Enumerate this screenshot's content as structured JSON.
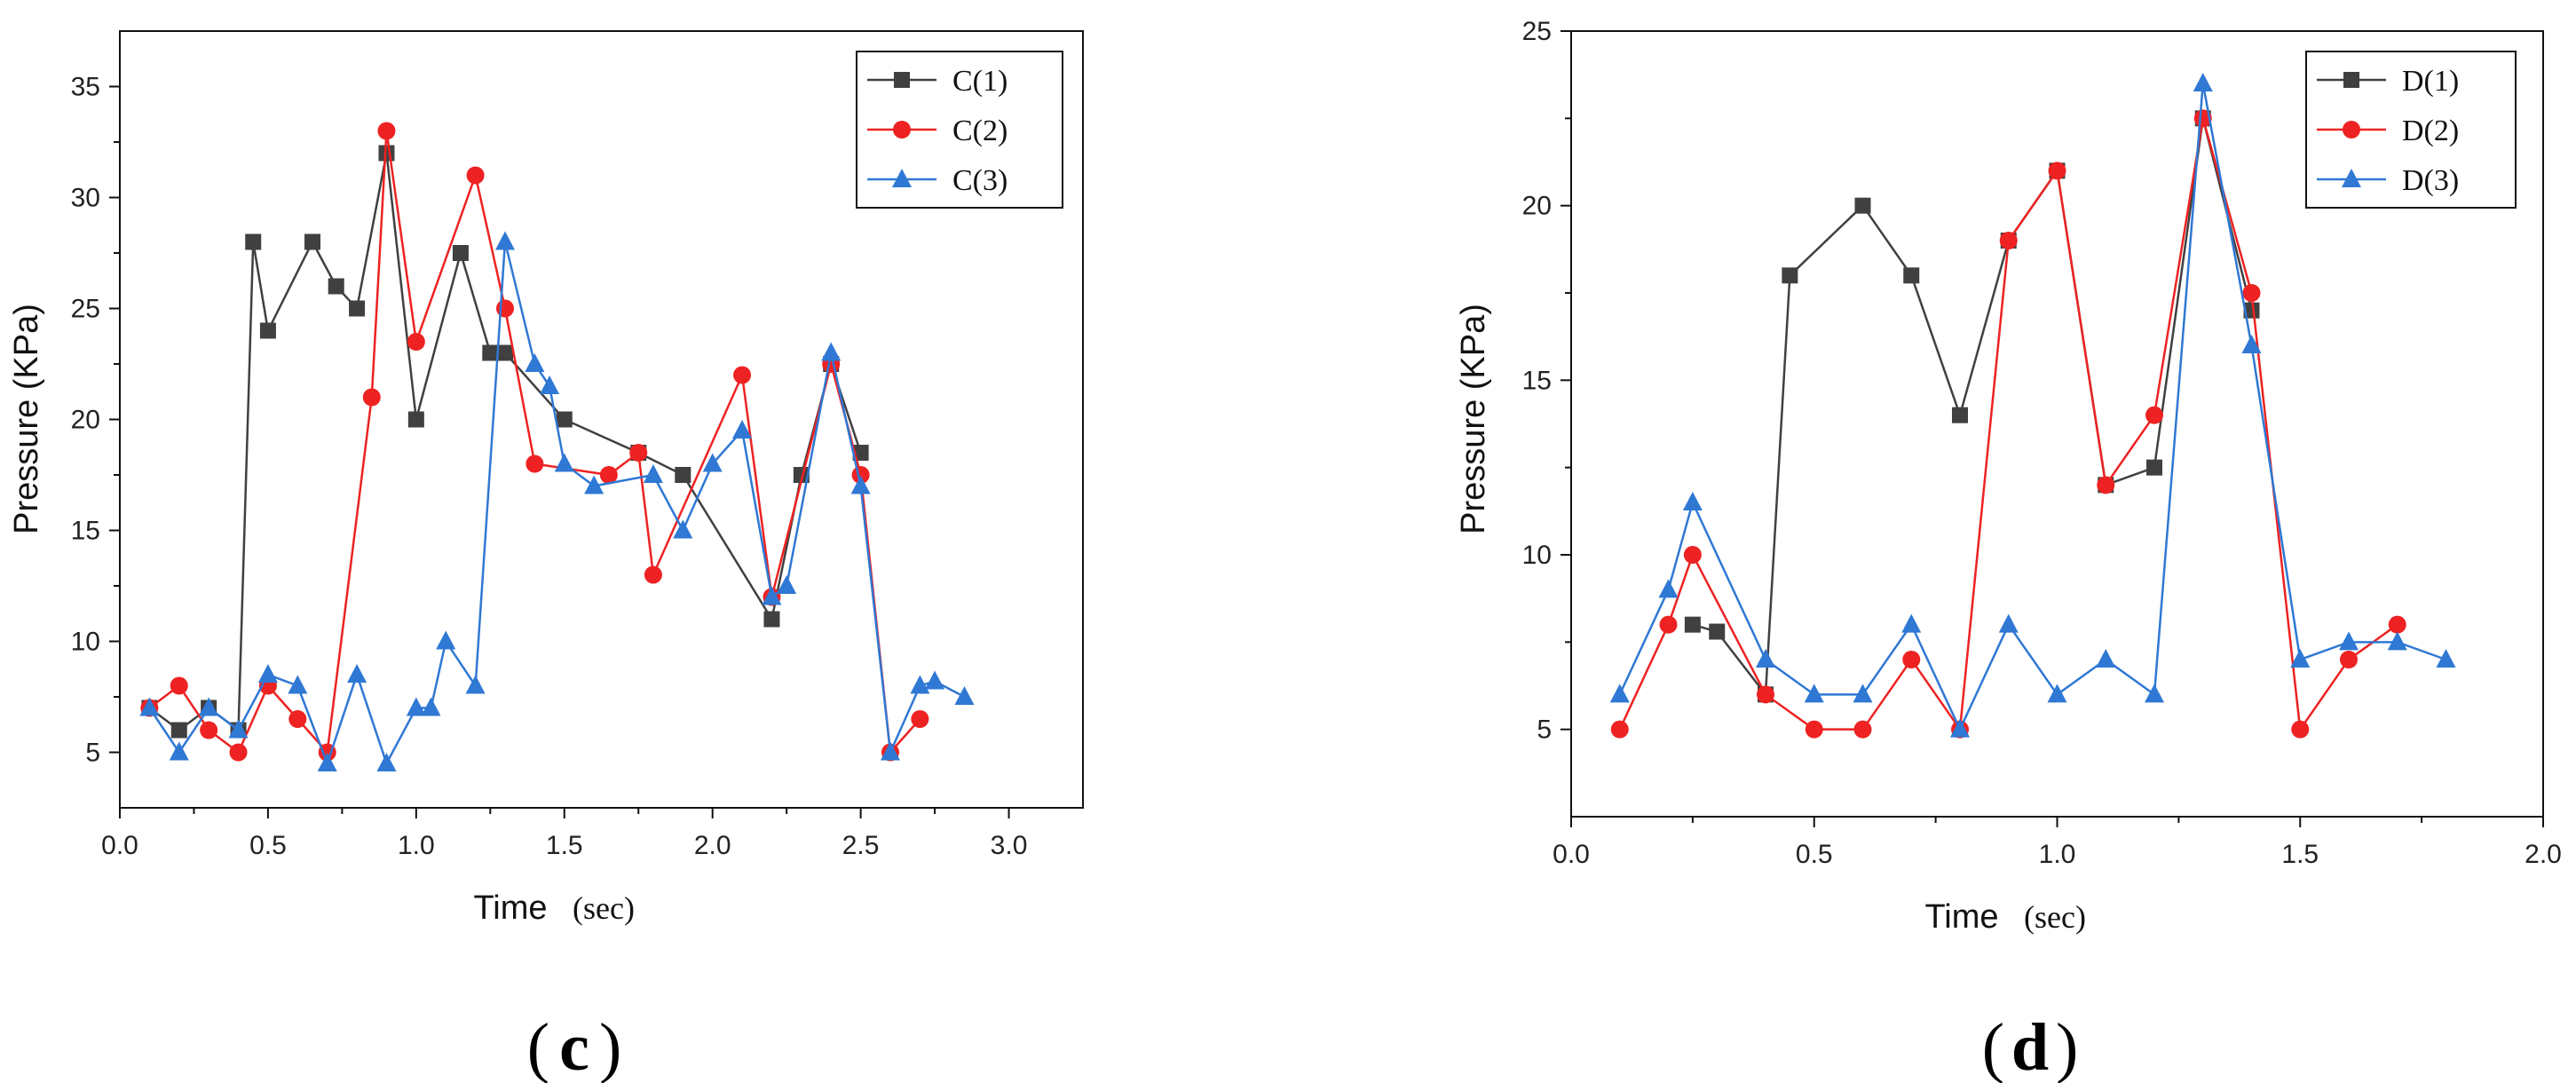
{
  "chart_data": [
    {
      "type": "line",
      "panel_label": [
        "(",
        "c",
        ")"
      ],
      "xlabel": "Time",
      "xlabel_unit": "(sec)",
      "ylabel": "Pressure (KPa)",
      "xlim": [
        0,
        3.25
      ],
      "ylim": [
        2.5,
        37.5
      ],
      "xticks": [
        0.0,
        0.5,
        1.0,
        1.5,
        2.0,
        2.5,
        3.0
      ],
      "xtick_labels": [
        "0.0",
        "0.5",
        "1.0",
        "1.5",
        "2.0",
        "2.5",
        "3.0"
      ],
      "yticks": [
        5,
        10,
        15,
        20,
        25,
        30,
        35
      ],
      "ytick_labels": [
        "5",
        "10",
        "15",
        "20",
        "25",
        "30",
        "35"
      ],
      "legend_position": "top-right",
      "series": [
        {
          "name": "C(1)",
          "color": "#404040",
          "marker": "square",
          "x": [
            0.1,
            0.2,
            0.3,
            0.4,
            0.45,
            0.5,
            0.65,
            0.73,
            0.8,
            0.9,
            1.0,
            1.15,
            1.25,
            1.3,
            1.5,
            1.75,
            1.9,
            2.2,
            2.3,
            2.4,
            2.5
          ],
          "y": [
            7,
            6,
            7,
            6,
            28,
            24,
            28,
            26,
            25,
            32,
            20,
            27.5,
            23,
            23,
            20,
            18.5,
            17.5,
            11,
            17.5,
            22.5,
            18.5
          ]
        },
        {
          "name": "C(2)",
          "color": "#ee2222",
          "marker": "circle",
          "x": [
            0.1,
            0.2,
            0.3,
            0.4,
            0.5,
            0.6,
            0.7,
            0.85,
            0.9,
            1.0,
            1.2,
            1.3,
            1.4,
            1.65,
            1.75,
            1.8,
            2.1,
            2.2,
            2.4,
            2.5,
            2.6,
            2.7
          ],
          "y": [
            7,
            8,
            6,
            5,
            8,
            6.5,
            5,
            21,
            33,
            23.5,
            31,
            25,
            18,
            17.5,
            18.5,
            13,
            22,
            12,
            22.5,
            17.5,
            5,
            6.5
          ]
        },
        {
          "name": "C(3)",
          "color": "#2f78d4",
          "marker": "triangle",
          "x": [
            0.1,
            0.2,
            0.3,
            0.4,
            0.5,
            0.6,
            0.7,
            0.8,
            0.9,
            1.0,
            1.05,
            1.1,
            1.2,
            1.3,
            1.4,
            1.45,
            1.5,
            1.6,
            1.8,
            1.9,
            2.0,
            2.1,
            2.2,
            2.25,
            2.4,
            2.5,
            2.6,
            2.7,
            2.75,
            2.85
          ],
          "y": [
            7,
            5,
            7,
            6,
            8.5,
            8,
            4.5,
            8.5,
            4.5,
            7,
            7,
            10,
            8,
            28,
            22.5,
            21.5,
            18,
            17,
            17.5,
            15,
            18,
            19.5,
            12,
            12.5,
            23,
            17,
            5,
            8,
            8.2,
            7.5
          ]
        }
      ]
    },
    {
      "type": "line",
      "panel_label": [
        "(",
        "d",
        ")"
      ],
      "xlabel": "Time",
      "xlabel_unit": "(sec)",
      "ylabel": "Pressure (KPa)",
      "xlim": [
        0,
        2.0
      ],
      "ylim": [
        2.5,
        25
      ],
      "xticks": [
        0.0,
        0.5,
        1.0,
        1.5,
        2.0
      ],
      "xtick_labels": [
        "0.0",
        "0.5",
        "1.0",
        "1.5",
        "2.0"
      ],
      "yticks": [
        5,
        10,
        15,
        20,
        25
      ],
      "ytick_labels": [
        "5",
        "10",
        "15",
        "20",
        "25"
      ],
      "legend_position": "top-right",
      "series": [
        {
          "name": "D(1)",
          "color": "#404040",
          "marker": "square",
          "x": [
            0.25,
            0.3,
            0.4,
            0.45,
            0.6,
            0.7,
            0.8,
            0.9,
            1.0,
            1.1,
            1.2,
            1.3,
            1.4
          ],
          "y": [
            8,
            7.8,
            6,
            18,
            20,
            18,
            14,
            19,
            21,
            12,
            12.5,
            22.5,
            17
          ]
        },
        {
          "name": "D(2)",
          "color": "#ee2222",
          "marker": "circle",
          "x": [
            0.1,
            0.2,
            0.25,
            0.4,
            0.5,
            0.6,
            0.7,
            0.8,
            0.9,
            1.0,
            1.1,
            1.2,
            1.3,
            1.4,
            1.5,
            1.6,
            1.7
          ],
          "y": [
            5,
            8,
            10,
            6,
            5,
            5,
            7,
            5,
            19,
            21,
            12,
            14,
            22.5,
            17.5,
            5,
            7,
            8
          ]
        },
        {
          "name": "D(3)",
          "color": "#2f78d4",
          "marker": "triangle",
          "x": [
            0.1,
            0.2,
            0.25,
            0.4,
            0.5,
            0.6,
            0.7,
            0.8,
            0.9,
            1.0,
            1.1,
            1.2,
            1.3,
            1.4,
            1.5,
            1.6,
            1.7,
            1.8
          ],
          "y": [
            6,
            9,
            11.5,
            7,
            6,
            6,
            8,
            5,
            8,
            6,
            7,
            6,
            23.5,
            16,
            7,
            7.5,
            7.5,
            7
          ]
        }
      ]
    }
  ]
}
